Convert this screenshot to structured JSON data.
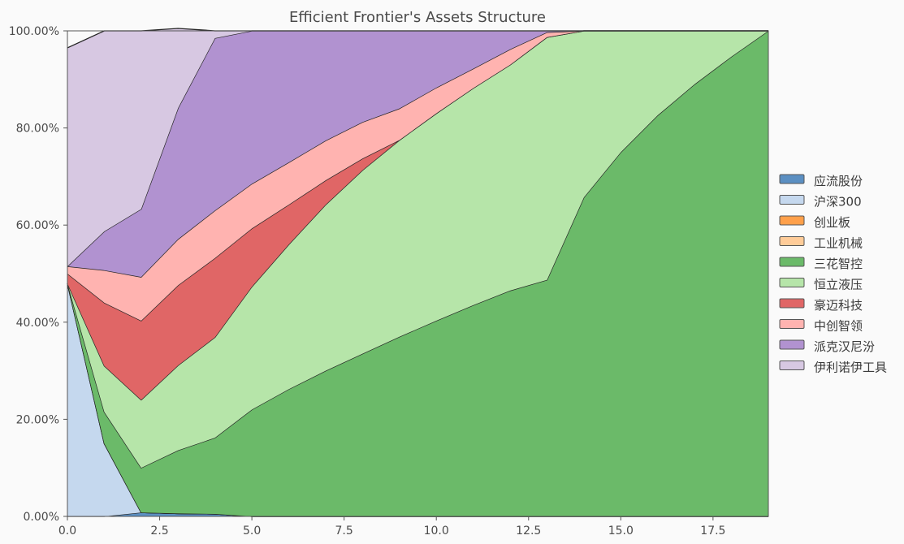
{
  "chart_data": {
    "type": "area",
    "title": "Efficient Frontier's Assets Structure",
    "xlabel": "",
    "ylabel": "",
    "x": [
      0,
      1,
      2,
      3,
      4,
      5,
      6,
      7,
      8,
      9,
      10,
      11,
      12,
      13,
      14,
      15,
      16,
      17,
      18,
      19
    ],
    "xlim": [
      0,
      19
    ],
    "ylim": [
      0,
      1
    ],
    "x_ticks": [
      0,
      2.5,
      5,
      7.5,
      10,
      12.5,
      15,
      17.5
    ],
    "x_tick_labels": [
      "0.0",
      "2.5",
      "5.0",
      "7.5",
      "10.0",
      "12.5",
      "15.0",
      "17.5"
    ],
    "y_ticks": [
      0,
      0.2,
      0.4,
      0.6,
      0.8,
      1.0
    ],
    "y_tick_labels": [
      "0.00%",
      "20.00%",
      "40.00%",
      "60.00%",
      "80.00%",
      "100.00%"
    ],
    "grid": true,
    "legend_position": "right",
    "stacked": true,
    "series": [
      {
        "name": "应流股份",
        "color": "#5b8fc2",
        "values": [
          0.0,
          0.0,
          0.008,
          0.006,
          0.005,
          0.0,
          0.0,
          0.0,
          0.0,
          0.0,
          0.0,
          0.0,
          0.0,
          0.0,
          0.0,
          0.0,
          0.0,
          0.0,
          0.0,
          0.0
        ]
      },
      {
        "name": "沪深300",
        "color": "#c5d8ee",
        "values": [
          0.48,
          0.15,
          0.0,
          0.0,
          0.0,
          0.0,
          0.0,
          0.0,
          0.0,
          0.0,
          0.0,
          0.0,
          0.0,
          0.0,
          0.0,
          0.0,
          0.0,
          0.0,
          0.0,
          0.0
        ]
      },
      {
        "name": "创业板",
        "color": "#ffa04a",
        "values": [
          0,
          0,
          0,
          0,
          0,
          0,
          0,
          0,
          0,
          0,
          0,
          0,
          0,
          0,
          0,
          0,
          0,
          0,
          0,
          0
        ]
      },
      {
        "name": "工业机械",
        "color": "#ffcc99",
        "values": [
          0,
          0,
          0,
          0,
          0,
          0,
          0,
          0,
          0,
          0,
          0,
          0,
          0,
          0,
          0,
          0,
          0,
          0,
          0,
          0
        ]
      },
      {
        "name": "三花智控",
        "color": "#6bba69",
        "values": [
          0.0,
          0.065,
          0.092,
          0.13,
          0.157,
          0.22,
          0.262,
          0.3,
          0.335,
          0.37,
          0.403,
          0.435,
          0.465,
          0.487,
          0.657,
          0.75,
          0.826,
          0.89,
          0.947,
          1.0
        ]
      },
      {
        "name": "恒立液压",
        "color": "#b6e5a9",
        "values": [
          0.0,
          0.095,
          0.14,
          0.175,
          0.207,
          0.253,
          0.298,
          0.342,
          0.378,
          0.405,
          0.427,
          0.447,
          0.465,
          0.5,
          0.343,
          0.25,
          0.174,
          0.11,
          0.053,
          0.0
        ]
      },
      {
        "name": "豪迈科技",
        "color": "#e06666",
        "values": [
          0.02,
          0.13,
          0.163,
          0.165,
          0.163,
          0.12,
          0.082,
          0.05,
          0.024,
          0.0,
          0.0,
          0.0,
          0.0,
          0.0,
          0.0,
          0.0,
          0.0,
          0.0,
          0.0,
          0.0
        ]
      },
      {
        "name": "中创智领",
        "color": "#ffb3b0",
        "values": [
          0.015,
          0.067,
          0.09,
          0.095,
          0.098,
          0.092,
          0.087,
          0.082,
          0.075,
          0.065,
          0.053,
          0.04,
          0.032,
          0.01,
          0.0,
          0.0,
          0.0,
          0.0,
          0.0,
          0.0
        ]
      },
      {
        "name": "派克汉尼汾",
        "color": "#b192d0",
        "values": [
          0.0,
          0.08,
          0.14,
          0.27,
          0.355,
          0.315,
          0.271,
          0.226,
          0.188,
          0.16,
          0.117,
          0.078,
          0.038,
          0.003,
          0.0,
          0.0,
          0.0,
          0.0,
          0.0,
          0.0
        ]
      },
      {
        "name": "伊利诺伊工具",
        "color": "#d7c8e2",
        "values": [
          0.45,
          0.413,
          0.367,
          0.164,
          0.015,
          0.0,
          0.0,
          0.0,
          0.0,
          0.0,
          0.0,
          0.0,
          0.0,
          0.0,
          0.0,
          0.0,
          0.0,
          0.0,
          0.0,
          0.0
        ]
      }
    ]
  }
}
